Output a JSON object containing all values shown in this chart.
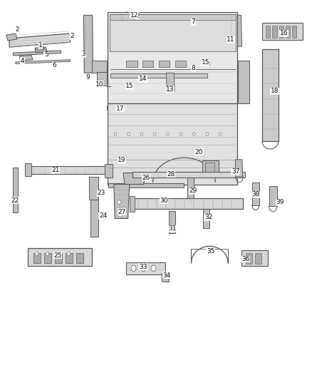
{
  "background_color": "#ffffff",
  "figsize": [
    4.38,
    5.33
  ],
  "dpi": 100,
  "line_color": "#555555",
  "text_color": "#111111",
  "label_fontsize": 6.5,
  "fill_light": "#d8d8d8",
  "fill_mid": "#c0c0c0",
  "fill_dark": "#aaaaaa",
  "label_data": [
    [
      1,
      0.13,
      0.88
    ],
    [
      2,
      0.055,
      0.922
    ],
    [
      2,
      0.23,
      0.905
    ],
    [
      2,
      0.44,
      0.958
    ],
    [
      3,
      0.268,
      0.858
    ],
    [
      4,
      0.072,
      0.84
    ],
    [
      5,
      0.148,
      0.856
    ],
    [
      6,
      0.175,
      0.828
    ],
    [
      7,
      0.62,
      0.942
    ],
    [
      8,
      0.62,
      0.82
    ],
    [
      9,
      0.282,
      0.796
    ],
    [
      10,
      0.318,
      0.778
    ],
    [
      11,
      0.74,
      0.895
    ],
    [
      12,
      0.43,
      0.96
    ],
    [
      13,
      0.545,
      0.764
    ],
    [
      14,
      0.458,
      0.792
    ],
    [
      15,
      0.415,
      0.773
    ],
    [
      15,
      0.658,
      0.835
    ],
    [
      16,
      0.91,
      0.912
    ],
    [
      17,
      0.385,
      0.714
    ],
    [
      18,
      0.88,
      0.76
    ],
    [
      19,
      0.39,
      0.578
    ],
    [
      20,
      0.638,
      0.6
    ],
    [
      21,
      0.178,
      0.552
    ],
    [
      22,
      0.048,
      0.472
    ],
    [
      23,
      0.325,
      0.492
    ],
    [
      24,
      0.33,
      0.432
    ],
    [
      25,
      0.185,
      0.328
    ],
    [
      26,
      0.468,
      0.532
    ],
    [
      27,
      0.39,
      0.442
    ],
    [
      28,
      0.548,
      0.542
    ],
    [
      29,
      0.618,
      0.498
    ],
    [
      30,
      0.525,
      0.472
    ],
    [
      31,
      0.552,
      0.398
    ],
    [
      32,
      0.668,
      0.428
    ],
    [
      33,
      0.458,
      0.298
    ],
    [
      34,
      0.535,
      0.275
    ],
    [
      35,
      0.675,
      0.338
    ],
    [
      36,
      0.788,
      0.318
    ],
    [
      37,
      0.755,
      0.548
    ],
    [
      38,
      0.82,
      0.488
    ],
    [
      39,
      0.898,
      0.468
    ]
  ]
}
